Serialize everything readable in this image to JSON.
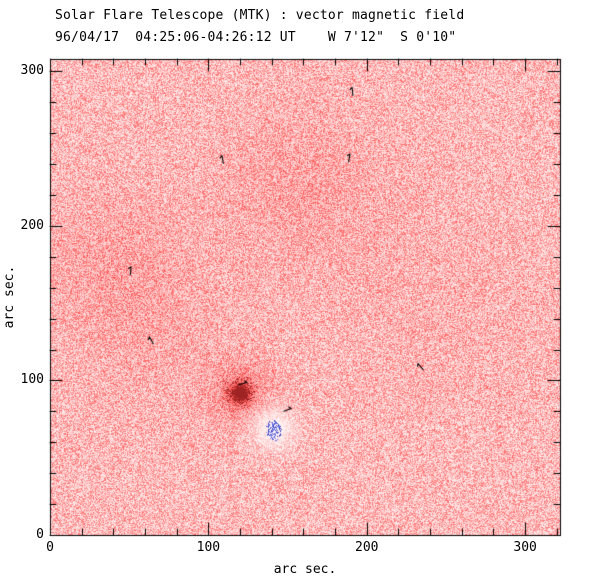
{
  "title": {
    "line1": "Solar Flare Telescope (MTK) : vector magnetic field",
    "line2": "96/04/17  04:25:06-04:26:12 UT    W 7'12\"  S 0'10\""
  },
  "axes": {
    "xlabel": "arc sec.",
    "ylabel": "arc sec.",
    "x_ticks": [
      0,
      100,
      200,
      300
    ],
    "y_ticks": [
      0,
      100,
      200,
      300
    ],
    "x_range": [
      0,
      322
    ],
    "y_range": [
      0,
      308
    ],
    "minor_tick_interval": 20
  },
  "chart_data": {
    "type": "heatmap",
    "title": "Solar Flare Telescope (MTK) : vector magnetic field",
    "subtitle": "96/04/17  04:25:06-04:26:12 UT    W 7'12\"  S 0'10\"",
    "xlabel": "arc sec.",
    "ylabel": "arc sec.",
    "x_range_arcsec": [
      0,
      322
    ],
    "y_range_arcsec": [
      0,
      308
    ],
    "colormap": {
      "positive_polarity": "#ff8888",
      "strong_positive": "#a52020",
      "negative_polarity": "#5060d0",
      "background": "#ffffff",
      "description": "speckled pink/white noise = weak positive field; saturated dark red blob = strong positive flux concentration; blue speckle cluster = negative flux; whitened halo = quiet zone around the negative patch"
    },
    "features": [
      {
        "name": "dark-red-spot",
        "label": "strong positive-polarity sunspot",
        "x": 120,
        "y": 92,
        "sigma": 5
      },
      {
        "name": "white-halo",
        "label": "quiet whitened region around negative patch",
        "x": 141,
        "y": 69,
        "radius": 14
      },
      {
        "name": "blue-spot",
        "label": "negative-polarity pore",
        "x": 141,
        "y": 68,
        "rx": 5,
        "ry": 7
      }
    ],
    "diffuse_regions": [
      {
        "x": 158,
        "y": 226,
        "sigma": 35,
        "weight": 0.13
      },
      {
        "x": 35,
        "y": 178,
        "sigma": 32,
        "weight": 0.11
      },
      {
        "x": 63,
        "y": 133,
        "sigma": 38,
        "weight": 0.08
      },
      {
        "x": 240,
        "y": 152,
        "sigma": 50,
        "weight": 0.05
      }
    ],
    "vectors": [
      {
        "x": 109,
        "y": 243,
        "angle": 100
      },
      {
        "x": 189,
        "y": 244,
        "angle": 80
      },
      {
        "x": 191,
        "y": 287,
        "angle": 95
      },
      {
        "x": 51,
        "y": 171,
        "angle": 85
      },
      {
        "x": 64,
        "y": 126,
        "angle": 120
      },
      {
        "x": 234,
        "y": 109,
        "angle": 130
      },
      {
        "x": 122,
        "y": 98,
        "angle": 15
      },
      {
        "x": 150,
        "y": 81,
        "angle": 20
      }
    ]
  }
}
